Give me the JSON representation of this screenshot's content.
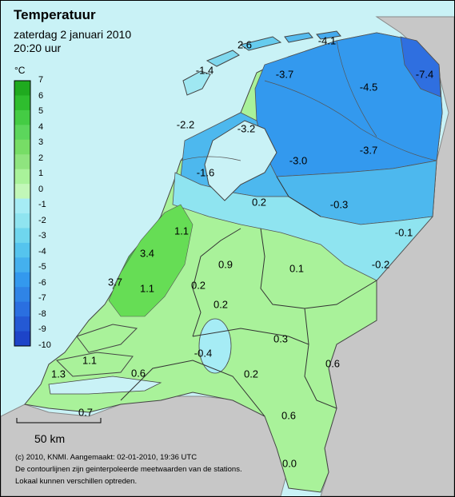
{
  "title": "Temperatuur",
  "date": "zaterdag 2 januari 2010",
  "time": "20:20 uur",
  "legend": {
    "unit": "°C",
    "levels": [
      "7",
      "6",
      "5",
      "4",
      "3",
      "2",
      "1",
      "0",
      "-1",
      "-2",
      "-3",
      "-4",
      "-5",
      "-6",
      "-7",
      "-8",
      "-9",
      "-10"
    ],
    "colors": [
      "#1faa1f",
      "#2ebd2e",
      "#44cc44",
      "#5cd65c",
      "#77dd66",
      "#8fe47f",
      "#a9f29a",
      "#c2f7b8",
      "#a6ecf5",
      "#8fe4f0",
      "#6fd6ee",
      "#55c4ee",
      "#44b0ee",
      "#3399ee",
      "#2f84e6",
      "#2a6fe0",
      "#2459d4",
      "#1d44c8"
    ]
  },
  "stations": [
    {
      "value": "2.6"
    },
    {
      "value": "-4.1"
    },
    {
      "value": "-1.4"
    },
    {
      "value": "-3.7"
    },
    {
      "value": "-7.4"
    },
    {
      "value": "-4.5"
    },
    {
      "value": "-2.2"
    },
    {
      "value": "-3.2"
    },
    {
      "value": "-3.7"
    },
    {
      "value": "-3.0"
    },
    {
      "value": "-1.6"
    },
    {
      "value": "0.2"
    },
    {
      "value": "-0.3"
    },
    {
      "value": "-0.1"
    },
    {
      "value": "1.1"
    },
    {
      "value": "3.4"
    },
    {
      "value": "0.9"
    },
    {
      "value": "0.1"
    },
    {
      "value": "-0.2"
    },
    {
      "value": "3.7"
    },
    {
      "value": "1.1"
    },
    {
      "value": "0.2"
    },
    {
      "value": "0.2"
    },
    {
      "value": "-0.4"
    },
    {
      "value": "0.3"
    },
    {
      "value": "1.1"
    },
    {
      "value": "0.6"
    },
    {
      "value": "0.6"
    },
    {
      "value": "0.2"
    },
    {
      "value": "1.3"
    },
    {
      "value": "0.7"
    },
    {
      "value": "0.6"
    },
    {
      "value": "0.0"
    }
  ],
  "scale_label": "50 km",
  "footer": {
    "line1": "(c) 2010, KNMI. Aangemaakt: 02-01-2010, 19:36 UTC",
    "line2": "De contourlijnen zijn geinterpoleerde meetwaarden van de stations.",
    "line3": "Lokaal kunnen verschillen optreden."
  }
}
